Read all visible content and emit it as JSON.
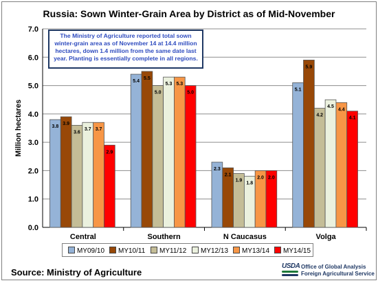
{
  "chart_data": {
    "type": "bar",
    "title": "Russia:  Sown Winter-Grain Area by District as of Mid-November",
    "ylabel": "Million hectares",
    "xlabel": "",
    "ylim": [
      0,
      7
    ],
    "yticks": [
      "0.0",
      "1.0",
      "2.0",
      "3.0",
      "4.0",
      "5.0",
      "6.0",
      "7.0"
    ],
    "grid": true,
    "legend_position": "bottom",
    "categories": [
      "Central",
      "Southern",
      "N Caucasus",
      "Volga"
    ],
    "series": [
      {
        "name": "MY09/10",
        "color": "#95b3d7",
        "values": [
          3.8,
          5.4,
          2.3,
          5.1
        ],
        "labels": [
          "3.8",
          "5.4",
          "2.3",
          "5.1"
        ]
      },
      {
        "name": "MY10/11",
        "color": "#984807",
        "values": [
          3.9,
          5.5,
          2.1,
          5.9
        ],
        "labels": [
          "3.9",
          "5.5",
          "2.1",
          "5.9"
        ]
      },
      {
        "name": "MY11/12",
        "color": "#c4bd97",
        "values": [
          3.6,
          5.0,
          1.9,
          4.2
        ],
        "labels": [
          "3.6",
          "5.0",
          "1.9",
          "4.2"
        ]
      },
      {
        "name": "MY12/13",
        "color": "#ebf1de",
        "values": [
          3.7,
          5.3,
          1.8,
          4.5
        ],
        "labels": [
          "3.7",
          "5.3",
          "1.8",
          "4.5"
        ]
      },
      {
        "name": "MY13/14",
        "color": "#f79646",
        "values": [
          3.7,
          5.3,
          2.0,
          4.4
        ],
        "labels": [
          "3.7",
          "5.3",
          "2.0",
          "4.4"
        ]
      },
      {
        "name": "MY14/15",
        "color": "#ff0000",
        "values": [
          2.9,
          5.0,
          2.0,
          4.1
        ],
        "labels": [
          "2.9",
          "5.0",
          "2.0",
          "4.1"
        ]
      }
    ],
    "annotation": "The Ministry of Agriculture reported total sown winter-grain area as of November 14 at 14.4 million hectares, down 1.4 million from the same date last year. Planting is essentially complete in all regions."
  },
  "footer": {
    "source": "Source:  Ministry of Agriculture",
    "logo_text": "USDA",
    "office_line1": "Office of Global Analysis",
    "office_line2": "Foreign Agricultural Service"
  },
  "colors": {
    "annotation_text": "#2f4cbf",
    "annotation_border": "#1f3864",
    "logo_blue": "#1f3864",
    "logo_green": "#1f7a3a"
  }
}
